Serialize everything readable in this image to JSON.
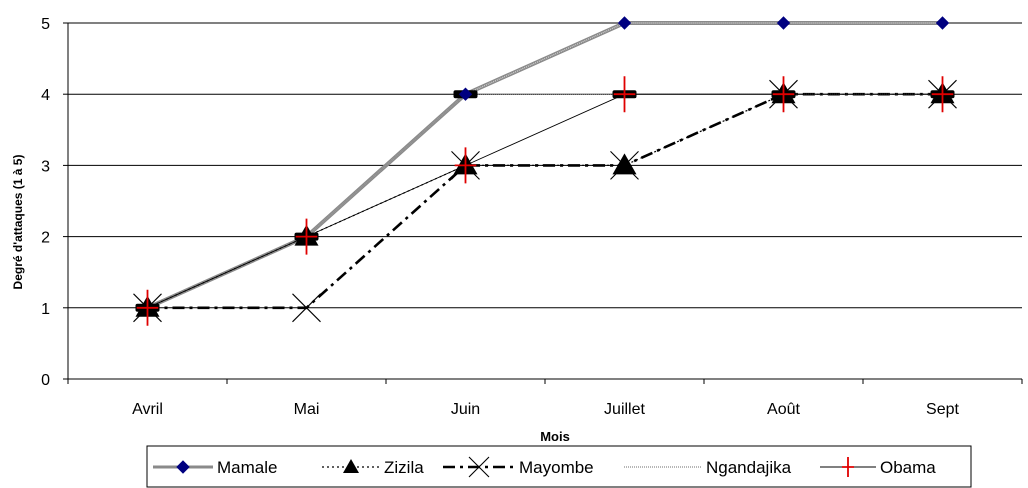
{
  "chart_data": {
    "type": "line",
    "xlabel": "Mois",
    "ylabel": "Degré d'attaques (1 à 5)",
    "ylim": [
      0,
      5
    ],
    "yticks": [
      0,
      1,
      2,
      3,
      4,
      5
    ],
    "grid": true,
    "legend": "bottom",
    "categories": [
      "Avril",
      "Mai",
      "Juin",
      "Juillet",
      "Août",
      "Sept"
    ],
    "series": [
      {
        "name": "Mamale",
        "values": [
          1,
          2,
          4,
          5,
          5,
          5
        ],
        "color": "#808080",
        "marker": "diamond",
        "marker_color": "#000080"
      },
      {
        "name": "Zizila",
        "values": [
          1,
          2,
          3,
          3,
          4,
          4
        ],
        "color": "#000000",
        "marker": "triangle",
        "marker_color": "#000000"
      },
      {
        "name": "Mayombe",
        "values": [
          1,
          1,
          3,
          3,
          4,
          4
        ],
        "color": "#000000",
        "marker": "x",
        "marker_color": "#000000"
      },
      {
        "name": "Ngandajika",
        "values": [
          1,
          2,
          4,
          4,
          4,
          4
        ],
        "color": "#888888",
        "marker": "square",
        "marker_color": "#000000"
      },
      {
        "name": "Obama",
        "values": [
          1,
          2,
          3,
          4,
          4,
          4
        ],
        "color": "#000000",
        "marker": "plus",
        "marker_color": "#e00000"
      }
    ]
  }
}
